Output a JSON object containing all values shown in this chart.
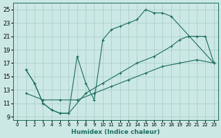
{
  "xlabel": "Humidex (Indice chaleur)",
  "bg_color": "#cce8e4",
  "line_color": "#1a6b5e",
  "grid_color": "#aacfcb",
  "xlim": [
    -0.5,
    23.5
  ],
  "ylim": [
    8.5,
    26.0
  ],
  "xticks": [
    0,
    1,
    2,
    3,
    4,
    5,
    6,
    7,
    8,
    9,
    10,
    11,
    12,
    13,
    14,
    15,
    16,
    17,
    18,
    19,
    20,
    21,
    22,
    23
  ],
  "yticks": [
    9,
    11,
    13,
    15,
    17,
    19,
    21,
    23,
    25
  ],
  "curve1_x": [
    1,
    2,
    3,
    4,
    5,
    6,
    7,
    8,
    9,
    10,
    11,
    12,
    13,
    14,
    15,
    16,
    17,
    18,
    23
  ],
  "curve1_y": [
    16.0,
    14.0,
    11.0,
    10.0,
    9.5,
    9.5,
    18.0,
    14.0,
    11.5,
    20.5,
    22.0,
    22.5,
    23.0,
    23.5,
    25.0,
    24.5,
    24.5,
    24.0,
    17.0
  ],
  "curve2_x": [
    1,
    2,
    3,
    4,
    5,
    6,
    8,
    10,
    12,
    14,
    16,
    18,
    19,
    20,
    21,
    22,
    23
  ],
  "curve2_y": [
    16.0,
    14.0,
    11.0,
    10.0,
    9.5,
    9.5,
    12.5,
    14.0,
    15.5,
    17.0,
    18.0,
    19.5,
    20.5,
    21.0,
    21.0,
    21.0,
    17.0
  ],
  "curve3_x": [
    1,
    3,
    5,
    7,
    9,
    11,
    13,
    15,
    17,
    19,
    21,
    23
  ],
  "curve3_y": [
    12.5,
    11.5,
    11.5,
    11.5,
    12.5,
    13.5,
    14.5,
    15.5,
    16.5,
    17.0,
    17.5,
    17.0
  ]
}
